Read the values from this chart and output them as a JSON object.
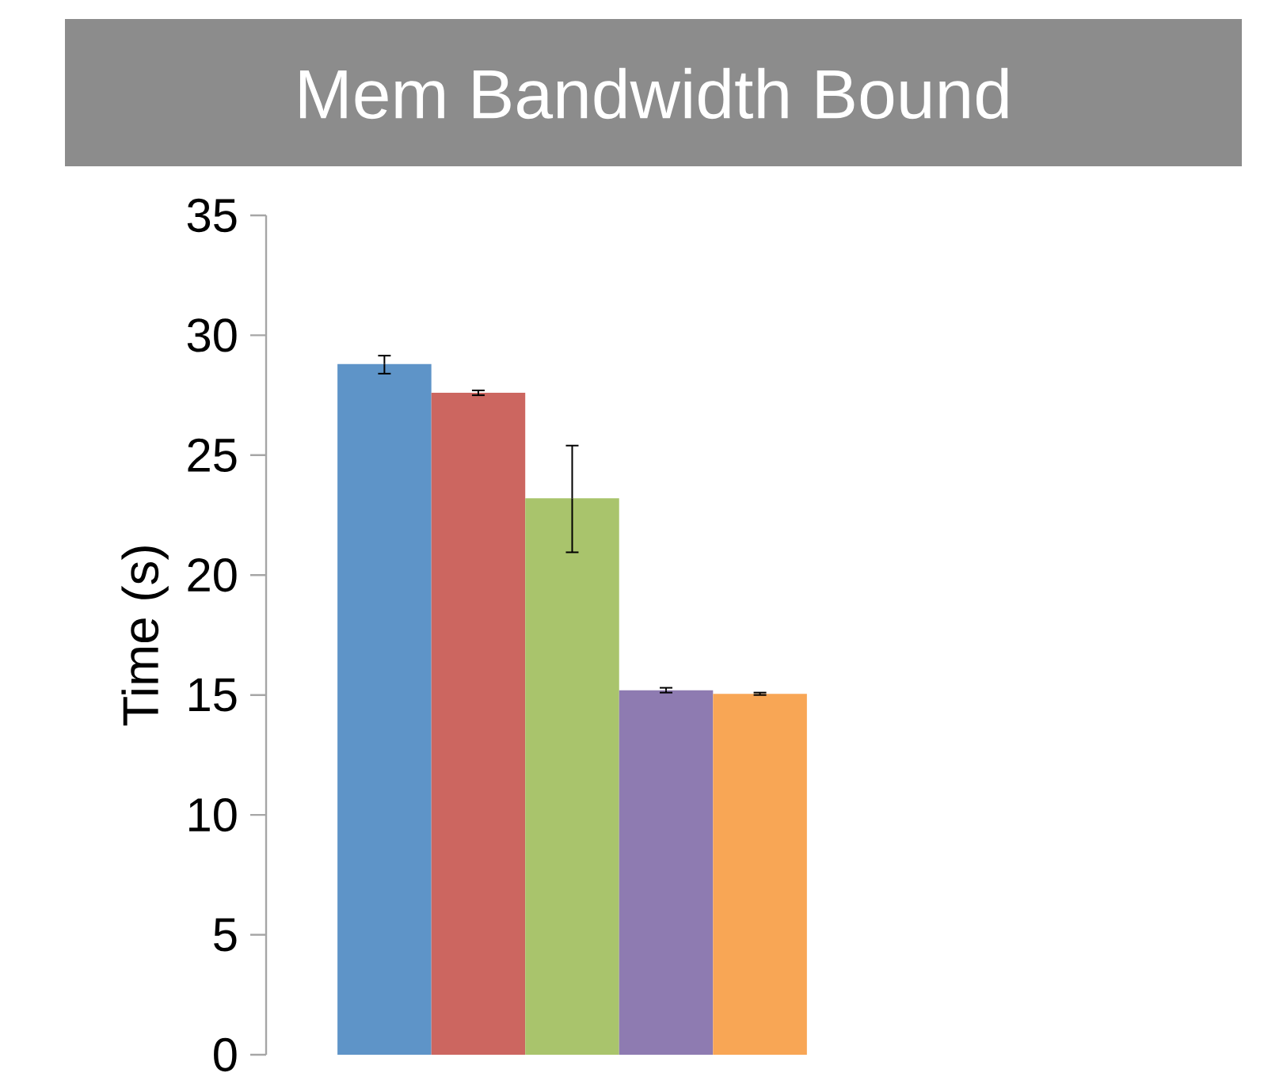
{
  "chart_data": {
    "type": "bar",
    "title": "Mem Bandwidth Bound",
    "ylabel": "Time (s)",
    "categories": [
      null,
      null,
      null,
      null,
      null
    ],
    "values": [
      28.8,
      27.6,
      23.2,
      15.2,
      15.05
    ],
    "errors": [
      [
        28.4,
        29.15
      ],
      [
        27.5,
        27.7
      ],
      [
        20.95,
        25.4
      ],
      [
        15.1,
        15.3
      ],
      [
        15.0,
        15.1
      ]
    ],
    "colors": [
      "#5e94c8",
      "#cc6660",
      "#a9c46c",
      "#8e7bb1",
      "#f8a655"
    ],
    "ylim": [
      0,
      35
    ],
    "yticks": [
      0,
      5,
      10,
      15,
      20,
      25,
      30,
      35
    ],
    "grid": false
  }
}
